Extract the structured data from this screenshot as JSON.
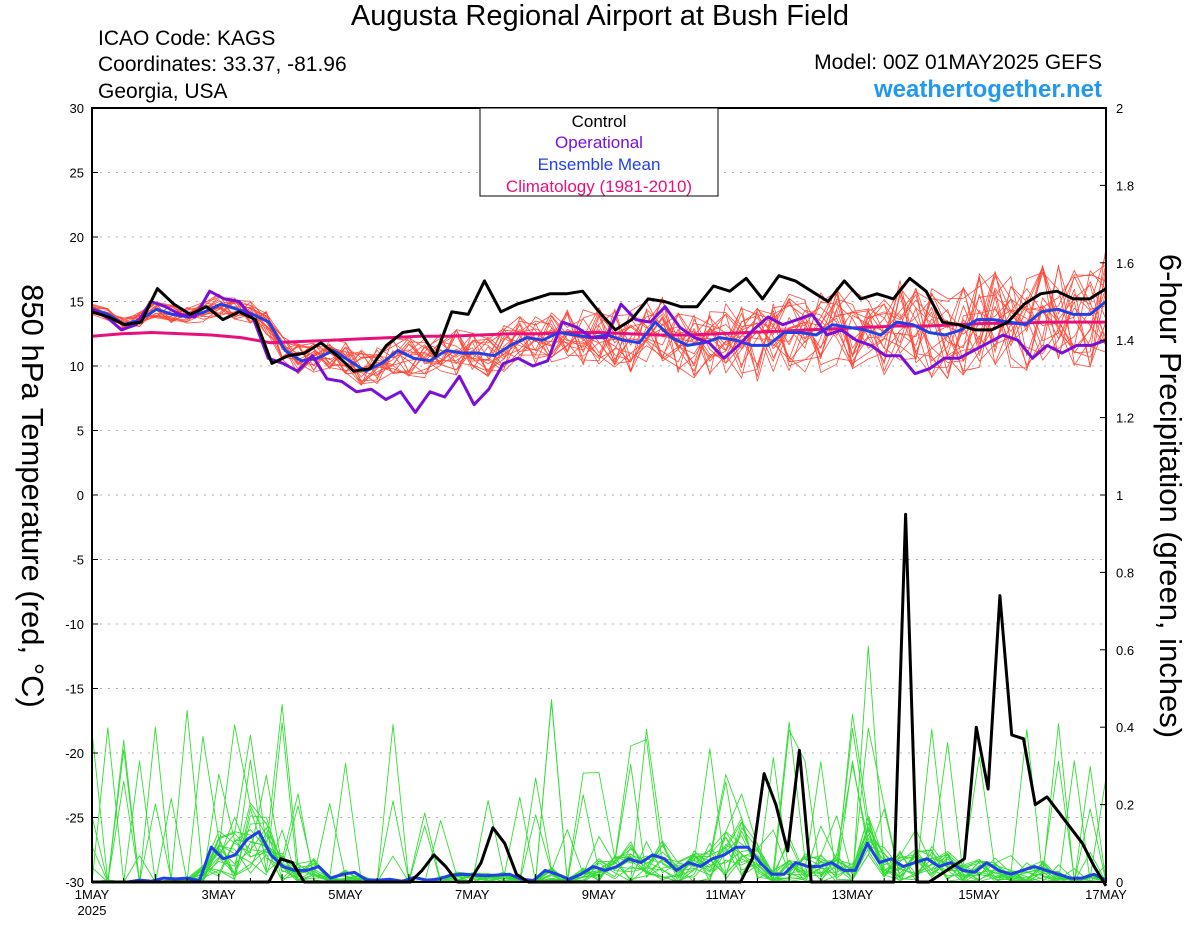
{
  "header": {
    "title": "Augusta Regional Airport at Bush Field",
    "icao": "ICAO Code: KAGS",
    "coordinates": "Coordinates: 33.37, -81.96",
    "location": "Georgia, USA",
    "model": "Model: 00Z 01MAY2025 GEFS",
    "site": "weathertogether.net"
  },
  "colors": {
    "control": "#000000",
    "operational": "#7a10d8",
    "ensemble_mean": "#2040e8",
    "climatology": "#e8107a",
    "temp_members": "#ff4a3a",
    "precip_members": "#33dd33",
    "site_link": "#2299ee"
  },
  "chart_data": {
    "type": "line",
    "ylabel": "850 hPa Temperature (red, °C)",
    "y2label": "6-hour Precipitation (green, inches)",
    "ylim": [
      -30,
      30
    ],
    "y2lim": [
      0,
      2
    ],
    "yticks": [
      30,
      25,
      20,
      15,
      10,
      5,
      0,
      -5,
      -10,
      -15,
      -20,
      -25,
      -30
    ],
    "y2ticks": [
      "2",
      "1.8",
      "1.6",
      "1.4",
      "1.2",
      "1",
      "0.8",
      "0.6",
      "0.4",
      "0.2",
      "0"
    ],
    "xlim": [
      0,
      16
    ],
    "xticks": [
      {
        "x": 0,
        "label": "1MAY"
      },
      {
        "x": 2,
        "label": "3MAY"
      },
      {
        "x": 4,
        "label": "5MAY"
      },
      {
        "x": 6,
        "label": "7MAY"
      },
      {
        "x": 8,
        "label": "9MAY"
      },
      {
        "x": 10,
        "label": "11MAY"
      },
      {
        "x": 12,
        "label": "13MAY"
      },
      {
        "x": 14,
        "label": "15MAY"
      },
      {
        "x": 16,
        "label": "17MAY"
      }
    ],
    "year_label": "2025",
    "grid": true,
    "legend": {
      "position": "top-center",
      "items": [
        {
          "label": "Control",
          "color": "#000000"
        },
        {
          "label": "Operational",
          "color": "#7a10d8"
        },
        {
          "label": "Ensemble Mean",
          "color": "#2040e8"
        },
        {
          "label": "Climatology (1981-2010)",
          "color": "#e8107a"
        }
      ]
    },
    "temperature": {
      "control": [
        14.2,
        13.8,
        13.2,
        13.4,
        16.0,
        14.8,
        14.0,
        14.6,
        13.6,
        14.2,
        13.6,
        10.2,
        10.8,
        11.0,
        11.8,
        10.8,
        9.6,
        9.8,
        11.6,
        12.6,
        12.8,
        10.8,
        14.2,
        14.0,
        16.6,
        14.2,
        14.8,
        15.2,
        15.6,
        15.6,
        15.8,
        14.2,
        12.8,
        13.6,
        15.2,
        15.0,
        14.6,
        14.6,
        16.2,
        15.8,
        16.8,
        15.2,
        17.0,
        16.6,
        15.8,
        15.0,
        16.6,
        15.2,
        15.6,
        15.2,
        16.8,
        15.8,
        13.4,
        13.2,
        12.8,
        12.8,
        13.4,
        14.8,
        15.6,
        15.8,
        15.2,
        15.2,
        16.0
      ],
      "operational": [
        14.4,
        13.8,
        12.8,
        13.2,
        15.0,
        14.6,
        14.0,
        13.8,
        15.8,
        15.2,
        15.0,
        13.6,
        10.6,
        10.2,
        9.6,
        10.8,
        9.0,
        8.8,
        8.0,
        8.2,
        7.4,
        8.0,
        6.4,
        8.0,
        7.6,
        9.2,
        7.0,
        8.2,
        10.2,
        10.6,
        10.0,
        10.4,
        13.4,
        13.0,
        12.2,
        12.2,
        14.8,
        13.6,
        13.4,
        14.6,
        13.0,
        12.2,
        11.8,
        10.6,
        11.6,
        12.8,
        13.8,
        13.2,
        13.6,
        14.0,
        12.4,
        12.8,
        12.0,
        11.6,
        10.8,
        10.8,
        9.4,
        9.8,
        10.6,
        10.6,
        11.2,
        11.8,
        12.4,
        12.0,
        10.6,
        11.6,
        11.0,
        11.6,
        11.6,
        12.0
      ],
      "ensemble_mean": [
        14.4,
        14.0,
        13.2,
        13.6,
        14.4,
        14.0,
        13.8,
        14.2,
        14.8,
        14.4,
        14.0,
        13.4,
        11.2,
        10.4,
        10.6,
        11.2,
        10.4,
        9.6,
        10.2,
        11.2,
        10.6,
        10.4,
        11.2,
        11.0,
        11.0,
        10.8,
        11.6,
        12.2,
        12.0,
        12.6,
        12.4,
        12.2,
        12.4,
        12.0,
        11.8,
        13.4,
        12.2,
        11.6,
        11.8,
        12.2,
        12.0,
        11.6,
        11.6,
        12.6,
        12.6,
        12.4,
        13.2,
        13.0,
        12.8,
        12.4,
        13.4,
        13.2,
        12.6,
        12.4,
        12.8,
        13.6,
        13.6,
        13.4,
        13.2,
        14.2,
        14.4,
        14.0,
        14.0,
        15.0
      ],
      "climatology": [
        12.3,
        12.5,
        12.6,
        12.5,
        12.4,
        12.2,
        11.8,
        11.9,
        12.0,
        12.1,
        12.2,
        12.3,
        12.3,
        12.4,
        12.5,
        12.5,
        12.6,
        12.6,
        12.5,
        12.4,
        12.4,
        12.5,
        12.6,
        12.7,
        12.8,
        12.9,
        13.0,
        13.1,
        13.1,
        13.2,
        13.3,
        13.3,
        13.4,
        13.4,
        13.4
      ]
    },
    "precipitation": {
      "control": [
        0,
        0,
        0,
        0,
        0,
        0,
        0,
        0,
        0,
        0,
        0,
        0,
        0,
        0,
        0,
        0,
        0.06,
        0.05,
        0,
        0,
        0,
        0,
        0,
        0,
        0,
        0,
        0,
        0,
        0.03,
        0.07,
        0.04,
        0,
        0,
        0.05,
        0.14,
        0.1,
        0.02,
        0,
        0,
        0,
        0,
        0,
        0,
        0,
        0,
        0,
        0,
        0,
        0,
        0,
        0,
        0,
        0,
        0,
        0,
        0,
        0.06,
        0.28,
        0.2,
        0.08,
        0.34,
        0,
        0,
        0,
        0,
        0,
        0,
        0,
        0,
        0.95,
        0,
        0,
        0.02,
        0.04,
        0.06,
        0.4,
        0.24,
        0.74,
        0.38,
        0.37,
        0.2,
        0.22,
        0.18,
        0.14,
        0.1,
        0.04,
        -0.01
      ],
      "ensemble_mean": [
        0,
        0,
        0,
        0,
        0.005,
        0.002,
        0.01,
        0.008,
        0.01,
        0.003,
        0.09,
        0.06,
        0.07,
        0.11,
        0.13,
        0.07,
        0.04,
        0.03,
        0.03,
        0.04,
        0.01,
        0.02,
        0.025,
        0.006,
        0.005,
        0.007,
        0.002,
        0.012,
        0.005,
        0.007,
        0.017,
        0.02,
        0.018,
        0.016,
        0.018,
        0.02,
        0.007,
        0.004,
        0.03,
        0.02,
        0.007,
        0.02,
        0.04,
        0.03,
        0.04,
        0.06,
        0.05,
        0.07,
        0.06,
        0.03,
        0.05,
        0.04,
        0.06,
        0.07,
        0.09,
        0.09,
        0.05,
        0.02,
        0.02,
        0.05,
        0.04,
        0.04,
        0.05,
        0.03,
        0.03,
        0.1,
        0.05,
        0.06,
        0.04,
        0.05,
        0.06,
        0.04,
        0.05,
        0.03,
        0.025,
        0.05,
        0.03,
        0.02,
        0.03,
        0.04,
        0.03,
        0.02,
        0.01,
        0.01,
        0.02,
        0.005
      ]
    }
  }
}
